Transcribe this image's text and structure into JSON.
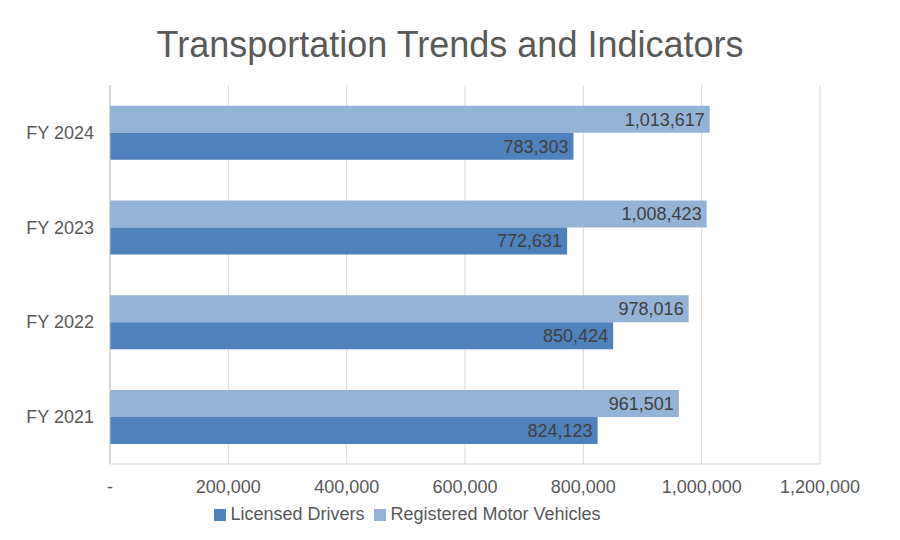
{
  "chart_data": {
    "type": "bar",
    "title": "Transportation Trends and Indicators",
    "orientation": "horizontal",
    "categories": [
      "FY 2024",
      "FY 2023",
      "FY 2022",
      "FY 2021"
    ],
    "series": [
      {
        "name": "Registered Motor Vehicles",
        "color": "#95b3d7",
        "values": [
          1013617,
          1008423,
          978016,
          961501
        ],
        "value_labels": [
          "1,013,617",
          "1,008,423",
          "978,016",
          "961,501"
        ]
      },
      {
        "name": "Licensed Drivers",
        "color": "#4f81bd",
        "values": [
          783303,
          772631,
          850424,
          824123
        ],
        "value_labels": [
          "783,303",
          "772,631",
          "850,424",
          "824,123"
        ]
      }
    ],
    "xlim": [
      0,
      1200000
    ],
    "xticks": [
      {
        "value": 0,
        "label": "-"
      },
      {
        "value": 200000,
        "label": "200,000"
      },
      {
        "value": 400000,
        "label": "400,000"
      },
      {
        "value": 600000,
        "label": "600,000"
      },
      {
        "value": 800000,
        "label": "800,000"
      },
      {
        "value": 1000000,
        "label": "1,000,000"
      },
      {
        "value": 1200000,
        "label": "1,200,000"
      }
    ],
    "grid": true,
    "legend": "bottom",
    "data_labels": true
  }
}
